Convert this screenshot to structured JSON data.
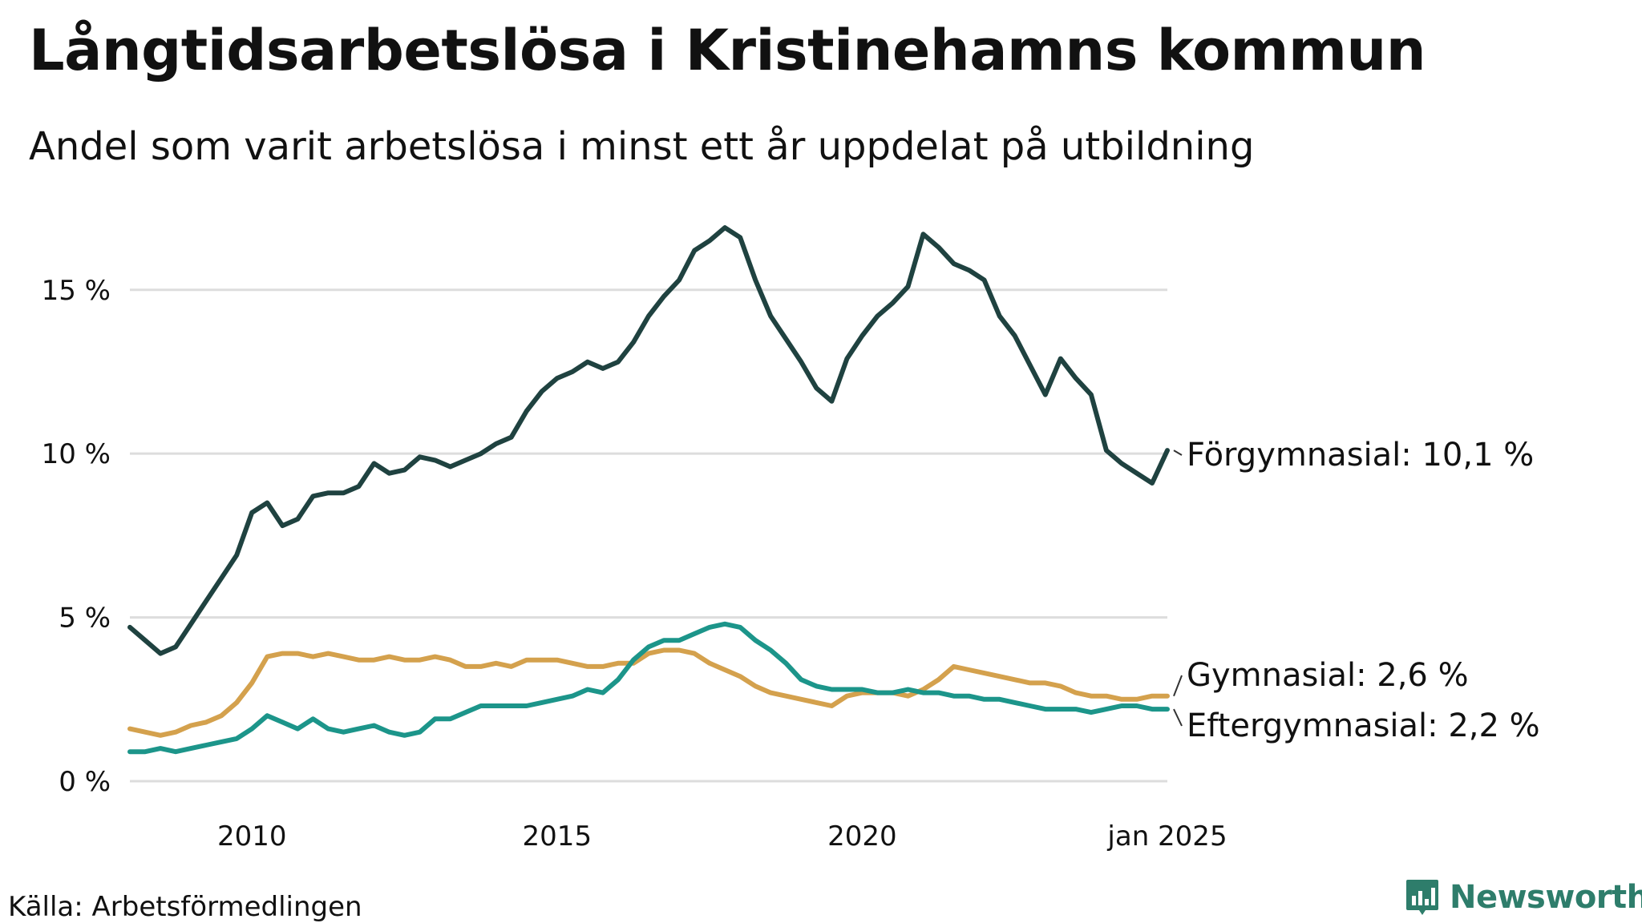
{
  "colors": {
    "forgymnasial": "#1f4240",
    "gymnasial": "#d4a14d",
    "eftergymnasial": "#1c958a",
    "grid": "#dddddd",
    "text": "#111111",
    "brand": "#2e7d6b"
  },
  "header": {
    "title": "Långtidsarbetslösa i Kristinehamns kommun",
    "subtitle": "Andel som varit arbetslösa i minst ett år uppdelat på utbildning"
  },
  "footer": {
    "source": "Källa: Arbetsförmedlingen",
    "brand": "Newsworthy",
    "brand_icon": "bar-chart-logo-icon"
  },
  "chart_data": {
    "type": "line",
    "title": "Långtidsarbetslösa i Kristinehamns kommun",
    "subtitle": "Andel som varit arbetslösa i minst ett år uppdelat på utbildning",
    "xlabel": "",
    "ylabel": "",
    "x_range": [
      2008.0,
      2025.0
    ],
    "ylim": [
      0,
      17
    ],
    "y_ticks": [
      {
        "value": 0,
        "label": "0 %"
      },
      {
        "value": 5,
        "label": "5 %"
      },
      {
        "value": 10,
        "label": "10 %"
      },
      {
        "value": 15,
        "label": "15 %"
      }
    ],
    "x_ticks": [
      {
        "value": 2010,
        "label": "2010"
      },
      {
        "value": 2015,
        "label": "2015"
      },
      {
        "value": 2020,
        "label": "2020"
      },
      {
        "value": 2025,
        "label": "jan 2025"
      }
    ],
    "grid": "horizontal",
    "series": [
      {
        "name": "Förgymnasial",
        "color": "#1f4240",
        "end_label": "Förgymnasial: 10,1 %",
        "x": [
          2008.0,
          2008.25,
          2008.5,
          2008.75,
          2009.0,
          2009.25,
          2009.5,
          2009.75,
          2010.0,
          2010.25,
          2010.5,
          2010.75,
          2011.0,
          2011.25,
          2011.5,
          2011.75,
          2012.0,
          2012.25,
          2012.5,
          2012.75,
          2013.0,
          2013.25,
          2013.5,
          2013.75,
          2014.0,
          2014.25,
          2014.5,
          2014.75,
          2015.0,
          2015.25,
          2015.5,
          2015.75,
          2016.0,
          2016.25,
          2016.5,
          2016.75,
          2017.0,
          2017.25,
          2017.5,
          2017.75,
          2018.0,
          2018.25,
          2018.5,
          2018.75,
          2019.0,
          2019.25,
          2019.5,
          2019.75,
          2020.0,
          2020.25,
          2020.5,
          2020.75,
          2021.0,
          2021.25,
          2021.5,
          2021.75,
          2022.0,
          2022.25,
          2022.5,
          2022.75,
          2023.0,
          2023.25,
          2023.5,
          2023.75,
          2024.0,
          2024.25,
          2024.5,
          2024.75,
          2025.0
        ],
        "values": [
          4.7,
          4.3,
          3.9,
          4.1,
          4.8,
          5.5,
          6.2,
          6.9,
          8.2,
          8.5,
          7.8,
          8.0,
          8.7,
          8.8,
          8.8,
          9.0,
          9.7,
          9.4,
          9.5,
          9.9,
          9.8,
          9.6,
          9.8,
          10.0,
          10.3,
          10.5,
          11.3,
          11.9,
          12.3,
          12.5,
          12.8,
          12.6,
          12.8,
          13.4,
          14.2,
          14.8,
          15.3,
          16.2,
          16.5,
          16.9,
          16.6,
          15.3,
          14.2,
          13.5,
          12.8,
          12.0,
          11.6,
          12.9,
          13.6,
          14.2,
          14.6,
          15.1,
          16.7,
          16.3,
          15.8,
          15.6,
          15.3,
          14.2,
          13.6,
          12.7,
          11.8,
          12.9,
          12.3,
          11.8,
          10.1,
          9.7,
          9.4,
          9.1,
          10.1
        ]
      },
      {
        "name": "Gymnasial",
        "color": "#d4a14d",
        "end_label": "Gymnasial:  2,6 %",
        "x": [
          2008.0,
          2008.25,
          2008.5,
          2008.75,
          2009.0,
          2009.25,
          2009.5,
          2009.75,
          2010.0,
          2010.25,
          2010.5,
          2010.75,
          2011.0,
          2011.25,
          2011.5,
          2011.75,
          2012.0,
          2012.25,
          2012.5,
          2012.75,
          2013.0,
          2013.25,
          2013.5,
          2013.75,
          2014.0,
          2014.25,
          2014.5,
          2014.75,
          2015.0,
          2015.25,
          2015.5,
          2015.75,
          2016.0,
          2016.25,
          2016.5,
          2016.75,
          2017.0,
          2017.25,
          2017.5,
          2017.75,
          2018.0,
          2018.25,
          2018.5,
          2018.75,
          2019.0,
          2019.25,
          2019.5,
          2019.75,
          2020.0,
          2020.25,
          2020.5,
          2020.75,
          2021.0,
          2021.25,
          2021.5,
          2021.75,
          2022.0,
          2022.25,
          2022.5,
          2022.75,
          2023.0,
          2023.25,
          2023.5,
          2023.75,
          2024.0,
          2024.25,
          2024.5,
          2024.75,
          2025.0
        ],
        "values": [
          1.6,
          1.5,
          1.4,
          1.5,
          1.7,
          1.8,
          2.0,
          2.4,
          3.0,
          3.8,
          3.9,
          3.9,
          3.8,
          3.9,
          3.8,
          3.7,
          3.7,
          3.8,
          3.7,
          3.7,
          3.8,
          3.7,
          3.5,
          3.5,
          3.6,
          3.5,
          3.7,
          3.7,
          3.7,
          3.6,
          3.5,
          3.5,
          3.6,
          3.6,
          3.9,
          4.0,
          4.0,
          3.9,
          3.6,
          3.4,
          3.2,
          2.9,
          2.7,
          2.6,
          2.5,
          2.4,
          2.3,
          2.6,
          2.7,
          2.7,
          2.7,
          2.6,
          2.8,
          3.1,
          3.5,
          3.4,
          3.3,
          3.2,
          3.1,
          3.0,
          3.0,
          2.9,
          2.7,
          2.6,
          2.6,
          2.5,
          2.5,
          2.6,
          2.6
        ]
      },
      {
        "name": "Eftergymnasial",
        "color": "#1c958a",
        "end_label": "Eftergymnasial:  2,2 %",
        "x": [
          2008.0,
          2008.25,
          2008.5,
          2008.75,
          2009.0,
          2009.25,
          2009.5,
          2009.75,
          2010.0,
          2010.25,
          2010.5,
          2010.75,
          2011.0,
          2011.25,
          2011.5,
          2011.75,
          2012.0,
          2012.25,
          2012.5,
          2012.75,
          2013.0,
          2013.25,
          2013.5,
          2013.75,
          2014.0,
          2014.25,
          2014.5,
          2014.75,
          2015.0,
          2015.25,
          2015.5,
          2015.75,
          2016.0,
          2016.25,
          2016.5,
          2016.75,
          2017.0,
          2017.25,
          2017.5,
          2017.75,
          2018.0,
          2018.25,
          2018.5,
          2018.75,
          2019.0,
          2019.25,
          2019.5,
          2019.75,
          2020.0,
          2020.25,
          2020.5,
          2020.75,
          2021.0,
          2021.25,
          2021.5,
          2021.75,
          2022.0,
          2022.25,
          2022.5,
          2022.75,
          2023.0,
          2023.25,
          2023.5,
          2023.75,
          2024.0,
          2024.25,
          2024.5,
          2024.75,
          2025.0
        ],
        "values": [
          0.9,
          0.9,
          1.0,
          0.9,
          1.0,
          1.1,
          1.2,
          1.3,
          1.6,
          2.0,
          1.8,
          1.6,
          1.9,
          1.6,
          1.5,
          1.6,
          1.7,
          1.5,
          1.4,
          1.5,
          1.9,
          1.9,
          2.1,
          2.3,
          2.3,
          2.3,
          2.3,
          2.4,
          2.5,
          2.6,
          2.8,
          2.7,
          3.1,
          3.7,
          4.1,
          4.3,
          4.3,
          4.5,
          4.7,
          4.8,
          4.7,
          4.3,
          4.0,
          3.6,
          3.1,
          2.9,
          2.8,
          2.8,
          2.8,
          2.7,
          2.7,
          2.8,
          2.7,
          2.7,
          2.6,
          2.6,
          2.5,
          2.5,
          2.4,
          2.3,
          2.2,
          2.2,
          2.2,
          2.1,
          2.2,
          2.3,
          2.3,
          2.2,
          2.2
        ]
      }
    ]
  }
}
